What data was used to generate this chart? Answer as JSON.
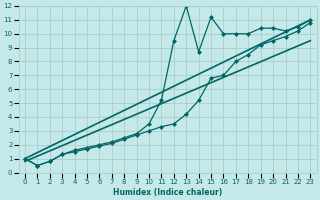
{
  "xlabel": "Humidex (Indice chaleur)",
  "xlim": [
    -0.5,
    23.5
  ],
  "ylim": [
    0,
    12
  ],
  "xticks": [
    0,
    1,
    2,
    3,
    4,
    5,
    6,
    7,
    8,
    9,
    10,
    11,
    12,
    13,
    14,
    15,
    16,
    17,
    18,
    19,
    20,
    21,
    22,
    23
  ],
  "yticks": [
    0,
    1,
    2,
    3,
    4,
    5,
    6,
    7,
    8,
    9,
    10,
    11,
    12
  ],
  "bg_color": "#c5e8e8",
  "grid_color": "#aacece",
  "line_color": "#006666",
  "series": [
    {
      "x": [
        0,
        1,
        2,
        3,
        4,
        5,
        6,
        7,
        8,
        9,
        10,
        11,
        12,
        13,
        14,
        15,
        16,
        17,
        18,
        19,
        20,
        21,
        22,
        23
      ],
      "y": [
        1.0,
        0.5,
        0.8,
        1.3,
        1.6,
        1.8,
        2.0,
        2.2,
        2.5,
        2.8,
        3.5,
        5.2,
        9.5,
        12.0,
        8.7,
        11.2,
        10.0,
        10.0,
        10.0,
        10.4,
        10.4,
        10.2,
        10.5,
        11.0
      ],
      "marker": "D",
      "markersize": 2.0,
      "linewidth": 0.9
    },
    {
      "x": [
        0,
        1,
        2,
        3,
        4,
        5,
        6,
        7,
        8,
        9,
        10,
        11,
        12,
        13,
        14,
        15,
        16,
        17,
        18,
        19,
        20,
        21,
        22,
        23
      ],
      "y": [
        1.0,
        0.5,
        0.8,
        1.3,
        1.5,
        1.7,
        1.9,
        2.1,
        2.4,
        2.7,
        3.0,
        3.3,
        3.5,
        4.2,
        5.2,
        6.8,
        7.0,
        8.0,
        8.5,
        9.2,
        9.5,
        9.8,
        10.2,
        10.8
      ],
      "marker": "D",
      "markersize": 2.0,
      "linewidth": 0.9
    },
    {
      "x": [
        0,
        23
      ],
      "y": [
        1.0,
        11.0
      ],
      "marker": null,
      "markersize": 0,
      "linewidth": 1.2
    },
    {
      "x": [
        0,
        23
      ],
      "y": [
        0.8,
        9.5
      ],
      "marker": null,
      "markersize": 0,
      "linewidth": 1.2
    }
  ]
}
